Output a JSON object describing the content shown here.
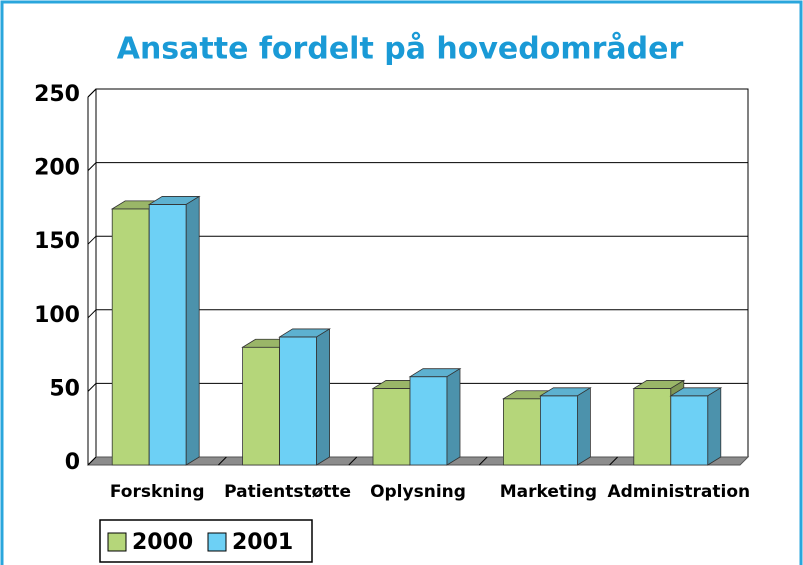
{
  "chart_data": {
    "type": "bar3d",
    "title": "Ansatte fordelt på hovedområder",
    "categories": [
      "Forskning",
      "Patientstøtte",
      "Oplysning",
      "Marketing",
      "Administration"
    ],
    "series": [
      {
        "name": "2000",
        "color": "#b5d67a",
        "values": [
          174,
          80,
          52,
          45,
          52
        ]
      },
      {
        "name": "2001",
        "color": "#6dd0f5",
        "values": [
          177,
          87,
          60,
          47,
          47
        ]
      }
    ],
    "ylim": [
      0,
      250
    ],
    "yticks": [
      0,
      50,
      100,
      150,
      200,
      250
    ],
    "grid": true,
    "legend": "bottom-left"
  }
}
